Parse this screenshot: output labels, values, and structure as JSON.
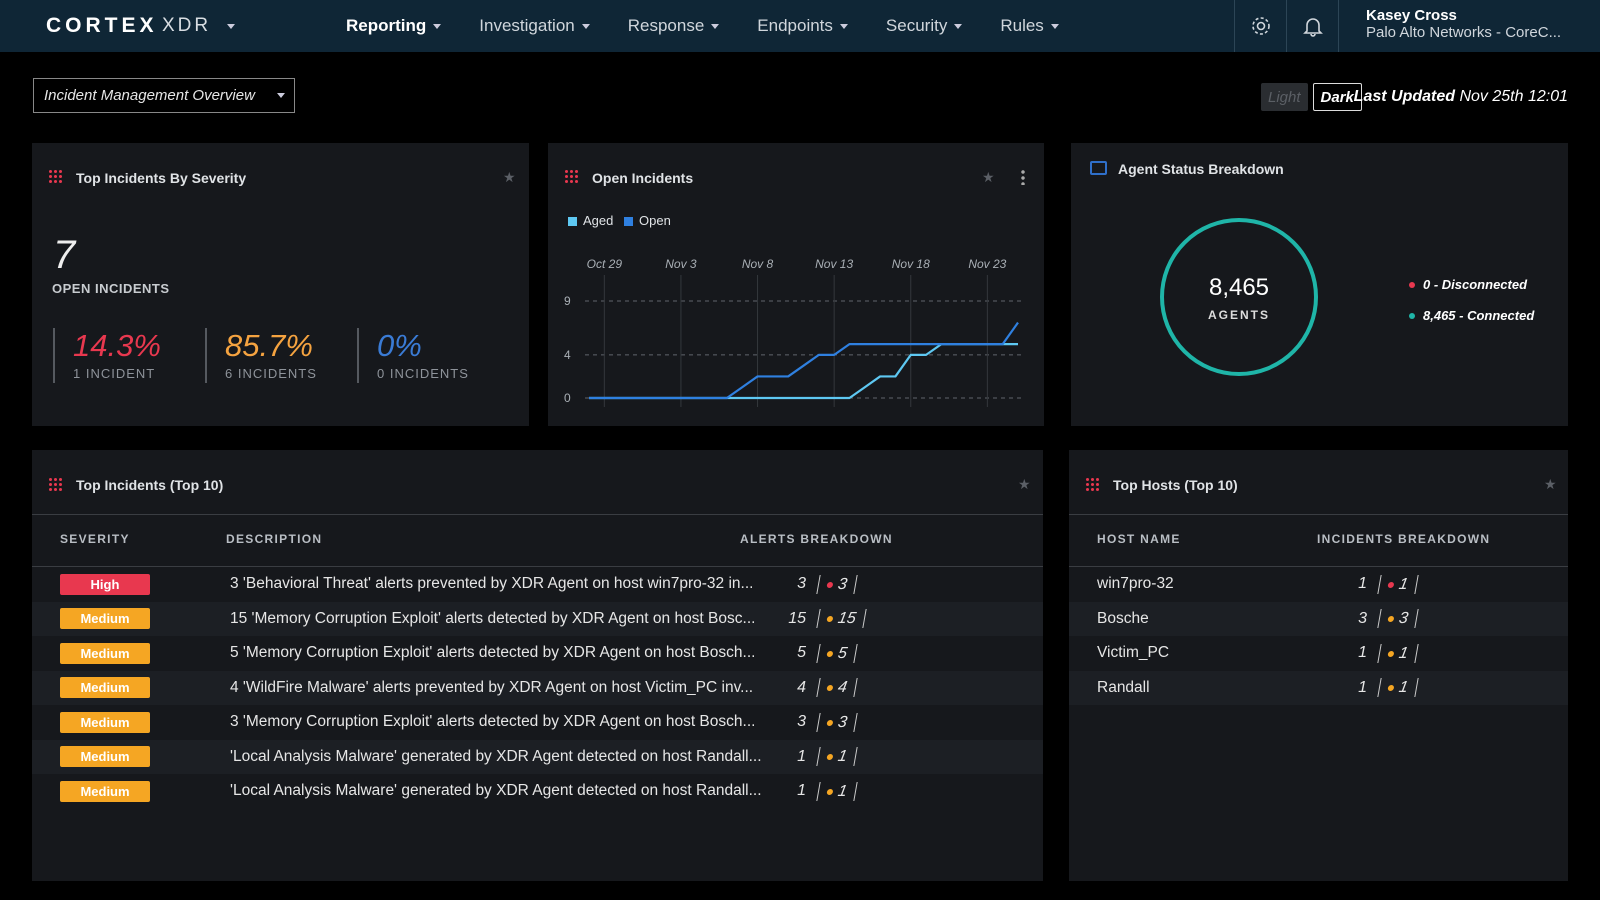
{
  "nav": {
    "logo": "CORTEX",
    "product": "XDR",
    "menu": [
      "Reporting",
      "Investigation",
      "Response",
      "Endpoints",
      "Security",
      "Rules"
    ],
    "user_name": "Kasey Cross",
    "user_org": "Palo Alto Networks - CoreC..."
  },
  "toolbar": {
    "dashboard_select": "Incident Management Overview",
    "theme_options": [
      "Light",
      "Dark"
    ],
    "last_updated_label": "Last Updated",
    "last_updated_value": "Nov 25th 12:01"
  },
  "severity_panel": {
    "title": "Top Incidents By Severity",
    "total": 7,
    "total_label": "OPEN INCIDENTS",
    "stats": [
      {
        "percent": "14.3%",
        "count": "1 INCIDENT",
        "color": "#e8384f"
      },
      {
        "percent": "85.7%",
        "count": "6 INCIDENTS",
        "color": "#f5a340"
      },
      {
        "percent": "0%",
        "count": "0 INCIDENTS",
        "color": "#3a7bd5"
      }
    ]
  },
  "open_incidents_panel": {
    "title": "Open Incidents",
    "chart": {
      "type": "line",
      "x": [
        "Oct 28",
        "Oct 29",
        "Oct 30",
        "Oct 31",
        "Nov 1",
        "Nov 2",
        "Nov 3",
        "Nov 4",
        "Nov 5",
        "Nov 6",
        "Nov 7",
        "Nov 8",
        "Nov 9",
        "Nov 10",
        "Nov 11",
        "Nov 12",
        "Nov 13",
        "Nov 14",
        "Nov 15",
        "Nov 16",
        "Nov 17",
        "Nov 18",
        "Nov 19",
        "Nov 20",
        "Nov 21",
        "Nov 22",
        "Nov 23",
        "Nov 24",
        "Nov 25"
      ],
      "xticks": [
        "Oct 29",
        "Nov 3",
        "Nov 8",
        "Nov 13",
        "Nov 18",
        "Nov 23"
      ],
      "ylim": [
        0,
        9
      ],
      "yticks": [
        0,
        4,
        9
      ],
      "grid": true,
      "series": [
        {
          "name": "Aged",
          "color": "#5ec8f2",
          "values": [
            0,
            0,
            0,
            0,
            0,
            0,
            0,
            0,
            0,
            0,
            0,
            0,
            0,
            0,
            0,
            0,
            0,
            0,
            1,
            2,
            2,
            4,
            4,
            5,
            5,
            5,
            5,
            5,
            5
          ]
        },
        {
          "name": "Open",
          "color": "#2f80e0",
          "values": [
            0,
            0,
            0,
            0,
            0,
            0,
            0,
            0,
            0,
            0,
            1,
            2,
            2,
            2,
            3,
            4,
            4,
            5,
            5,
            5,
            5,
            5,
            5,
            5,
            5,
            5,
            5,
            5,
            7
          ]
        }
      ]
    }
  },
  "agent_panel": {
    "title": "Agent Status Breakdown",
    "total": "8,465",
    "total_label": "AGENTS",
    "legend": [
      {
        "text": "0 - Disconnected",
        "value": 0,
        "color": "#e8384f"
      },
      {
        "text": "8,465 - Connected",
        "value": 8465,
        "color": "#1fb5a8"
      }
    ]
  },
  "incidents_table": {
    "title": "Top Incidents (Top 10)",
    "headers": [
      "SEVERITY",
      "DESCRIPTION",
      "ALERTS BREAKDOWN"
    ],
    "rows": [
      {
        "severity": "High",
        "severity_color": "#e8384f",
        "description": "3 'Behavioral Threat' alerts prevented by XDR Agent on host win7pro-32 in...",
        "alerts": 3,
        "breakdown": 3,
        "dot_color": "#e8384f"
      },
      {
        "severity": "Medium",
        "severity_color": "#f5a623",
        "description": "15 'Memory Corruption Exploit' alerts detected by XDR Agent on host Bosc...",
        "alerts": 15,
        "breakdown": 15,
        "dot_color": "#f5a623"
      },
      {
        "severity": "Medium",
        "severity_color": "#f5a623",
        "description": "5 'Memory Corruption Exploit' alerts detected by XDR Agent on host Bosch...",
        "alerts": 5,
        "breakdown": 5,
        "dot_color": "#f5a623"
      },
      {
        "severity": "Medium",
        "severity_color": "#f5a623",
        "description": "4 'WildFire Malware' alerts prevented by XDR Agent on host Victim_PC inv...",
        "alerts": 4,
        "breakdown": 4,
        "dot_color": "#f5a623"
      },
      {
        "severity": "Medium",
        "severity_color": "#f5a623",
        "description": "3 'Memory Corruption Exploit' alerts detected by XDR Agent on host Bosch...",
        "alerts": 3,
        "breakdown": 3,
        "dot_color": "#f5a623"
      },
      {
        "severity": "Medium",
        "severity_color": "#f5a623",
        "description": "'Local Analysis Malware' generated by XDR Agent detected on host Randall...",
        "alerts": 1,
        "breakdown": 1,
        "dot_color": "#f5a623"
      },
      {
        "severity": "Medium",
        "severity_color": "#f5a623",
        "description": "'Local Analysis Malware' generated by XDR Agent detected on host Randall...",
        "alerts": 1,
        "breakdown": 1,
        "dot_color": "#f5a623"
      }
    ]
  },
  "hosts_table": {
    "title": "Top Hosts (Top 10)",
    "headers": [
      "HOST NAME",
      "INCIDENTS BREAKDOWN"
    ],
    "rows": [
      {
        "host": "win7pro-32",
        "incidents": 1,
        "breakdown": 1,
        "dot_color": "#e8384f"
      },
      {
        "host": "Bosche",
        "incidents": 3,
        "breakdown": 3,
        "dot_color": "#f5a623"
      },
      {
        "host": "Victim_PC",
        "incidents": 1,
        "breakdown": 1,
        "dot_color": "#f5a623"
      },
      {
        "host": "Randall",
        "incidents": 1,
        "breakdown": 1,
        "dot_color": "#f5a623"
      }
    ]
  }
}
